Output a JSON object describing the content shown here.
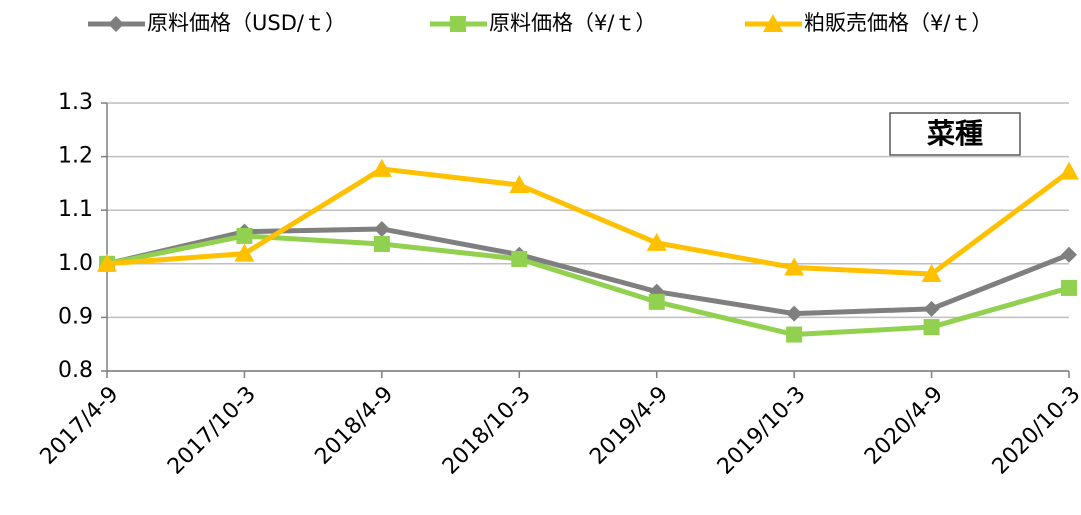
{
  "chart_data": {
    "type": "line",
    "categories": [
      "2017/4-9",
      "2017/10-3",
      "2018/4-9",
      "2018/10-3",
      "2019/4-9",
      "2019/10-3",
      "2020/4-9",
      "2020/10-3"
    ],
    "series": [
      {
        "name": "原料価格（USD/ｔ）",
        "color": "#7f7f7f",
        "marker": "diamond",
        "values": [
          1.0,
          1.06,
          1.065,
          1.017,
          0.948,
          0.907,
          0.916,
          1.017
        ]
      },
      {
        "name": "原料価格（¥/ｔ）",
        "color": "#92d050",
        "marker": "square",
        "values": [
          1.0,
          1.052,
          1.037,
          1.009,
          0.929,
          0.868,
          0.882,
          0.955
        ]
      },
      {
        "name": "粕販売価格（¥/ｔ）",
        "color": "#ffc000",
        "marker": "triangle",
        "values": [
          1.0,
          1.019,
          1.177,
          1.147,
          1.039,
          0.993,
          0.981,
          1.172
        ]
      }
    ],
    "ylim": [
      0.8,
      1.3
    ],
    "yticks": [
      0.8,
      0.9,
      {
        "value": 1.0,
        "label": "1.0"
      },
      1.1,
      1.2,
      1.3
    ],
    "grid": true,
    "legend": "top",
    "annotation": "菜種"
  }
}
